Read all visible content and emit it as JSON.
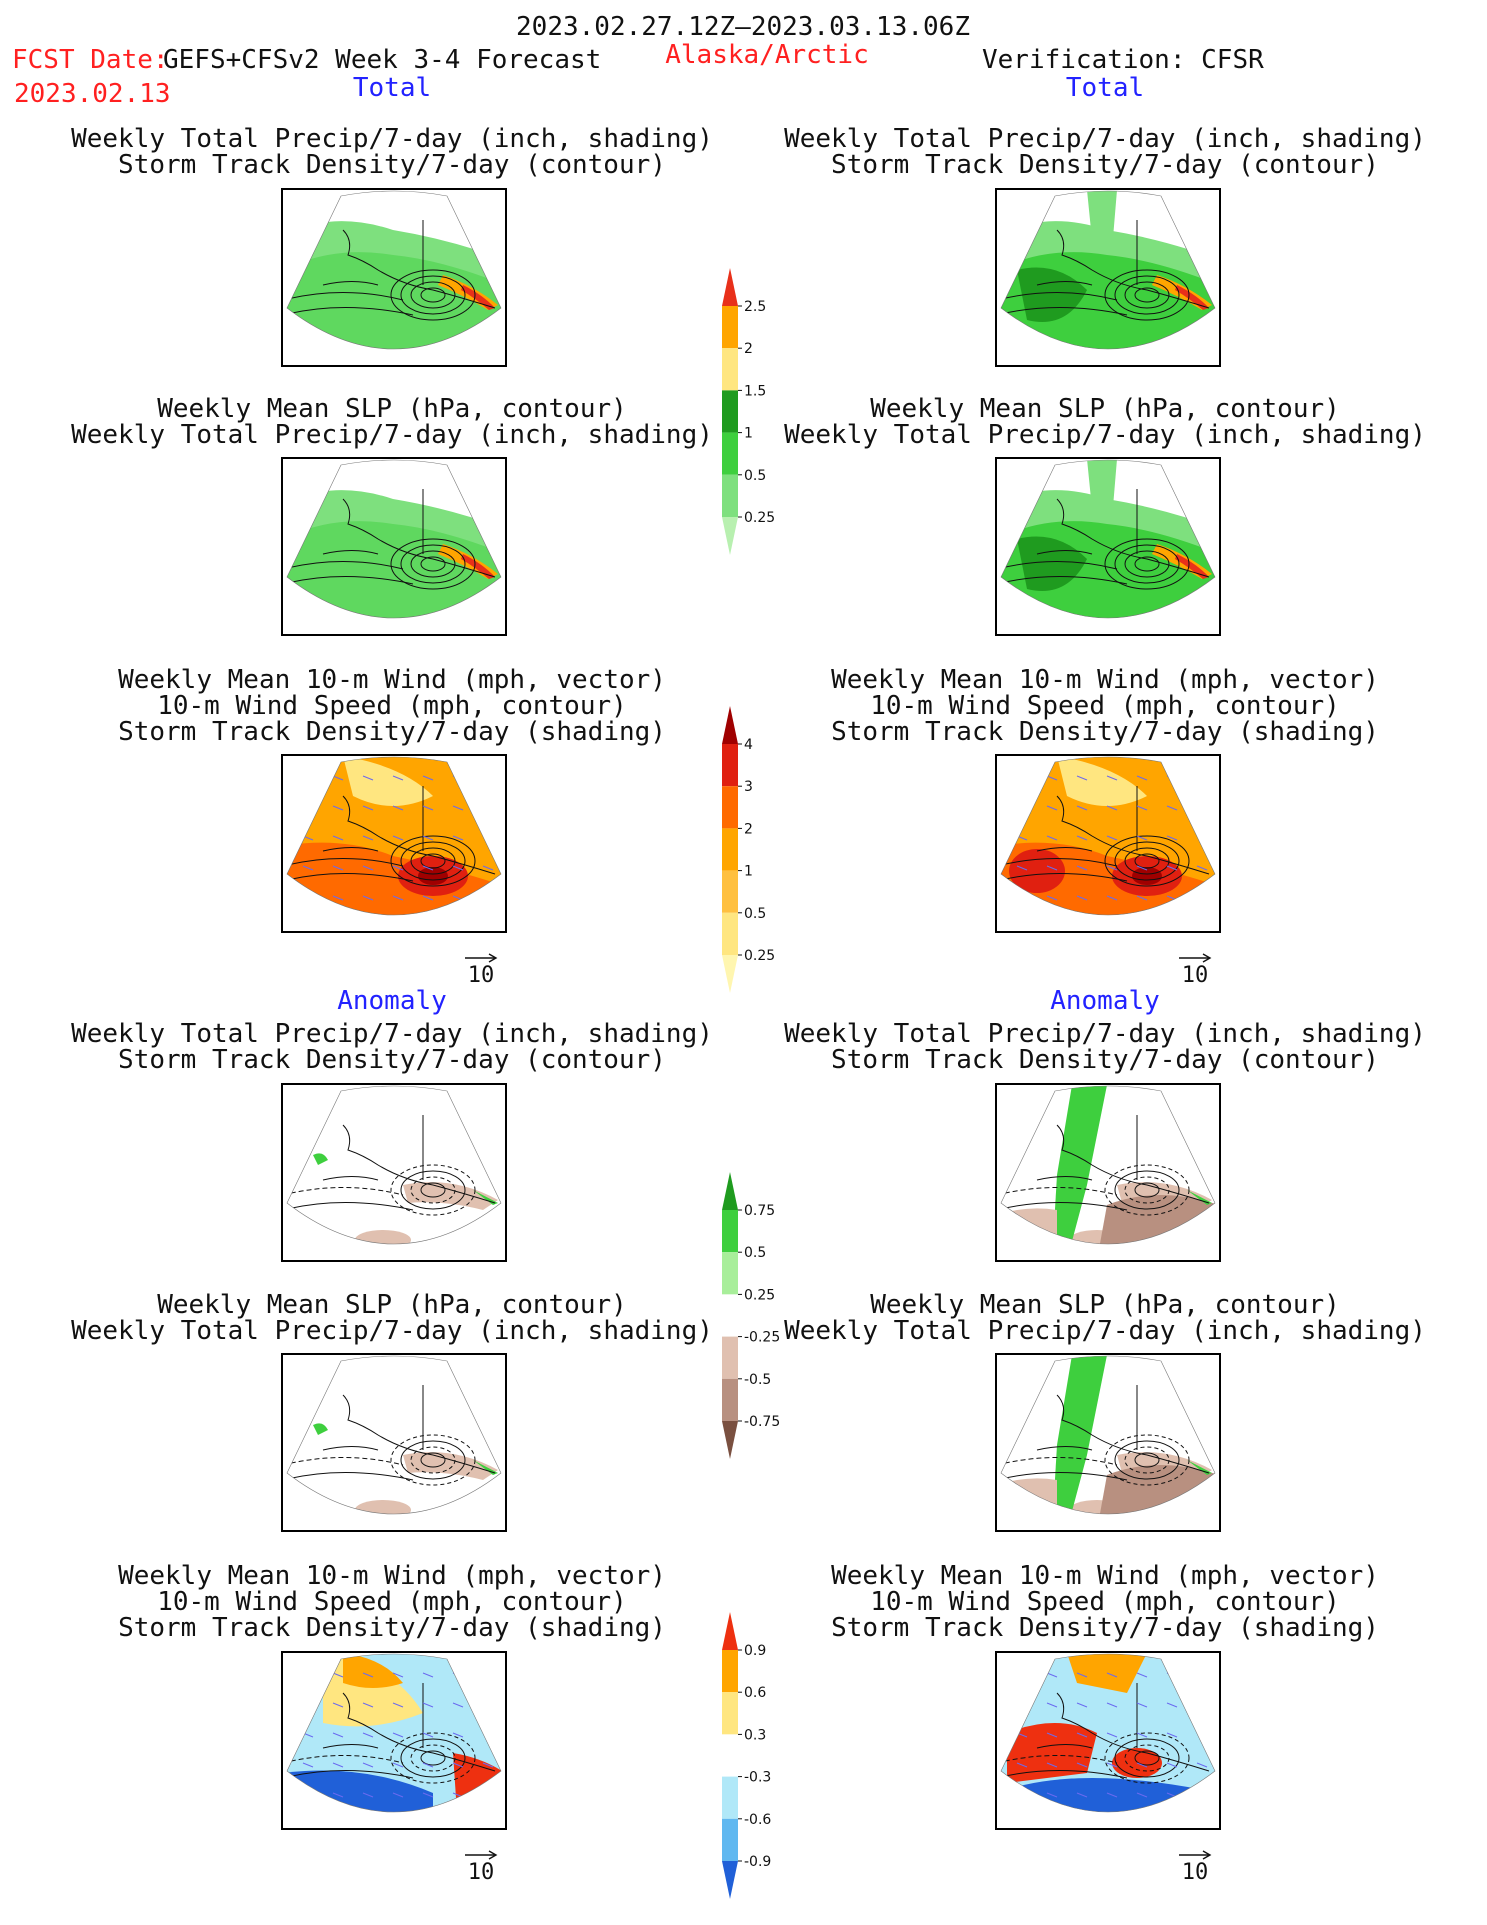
{
  "header": {
    "date_range": "2023.02.27.12Z–2023.03.13.06Z",
    "fcst_label": "FCST Date:",
    "model_label": "GEFS+CFSv2 Week 3-4 Forecast",
    "region": "Alaska/Arctic",
    "verification": "Verification: CFSR",
    "fcst_date": "2023.02.13"
  },
  "sections": {
    "total_left": "Total",
    "total_right": "Total",
    "anomaly_left": "Anomaly",
    "anomaly_right": "Anomaly"
  },
  "titles": {
    "precip_storm": [
      "Weekly Total Precip/7-day (inch, shading)",
      "Storm Track Density/7-day (contour)"
    ],
    "slp_precip": [
      "Weekly Mean SLP (hPa, contour)",
      "Weekly Total Precip/7-day (inch, shading)"
    ],
    "wind_storm": [
      "Weekly Mean 10-m Wind (mph, vector)",
      "10-m Wind Speed (mph, contour)",
      "Storm Track Density/7-day (shading)"
    ]
  },
  "vector_ref": "10",
  "colorbars": {
    "precip_total": {
      "labels": [
        "2.5",
        "2",
        "1.5",
        "1",
        "0.5",
        "0.25"
      ],
      "colors": [
        "#e8301a",
        "#ffa500",
        "#ffe680",
        "#1f9b1f",
        "#3ecf3e",
        "#7ee07e",
        "#b8f0b0"
      ]
    },
    "storm_total": {
      "labels": [
        "4",
        "3",
        "2",
        "1",
        "0.5",
        "0.25"
      ],
      "colors": [
        "#a00000",
        "#e02010",
        "#ff6a00",
        "#ffa500",
        "#ffc040",
        "#ffe680",
        "#fff6b0"
      ]
    },
    "precip_anom": {
      "labels": [
        "0.75",
        "0.5",
        "0.25",
        "-0.25",
        "-0.5",
        "-0.75"
      ],
      "colors": [
        "#1f9b1f",
        "#3ecf3e",
        "#a8ee9a",
        "#ffffff",
        "#e0c0b0",
        "#b89080",
        "#7a5040"
      ]
    },
    "storm_anom": {
      "labels": [
        "0.9",
        "0.6",
        "0.3",
        "-0.3",
        "-0.6",
        "-0.9"
      ],
      "colors": [
        "#ee3010",
        "#ffa500",
        "#ffe680",
        "#ffffff",
        "#b0e8f8",
        "#60b8f0",
        "#2060d8"
      ]
    }
  }
}
